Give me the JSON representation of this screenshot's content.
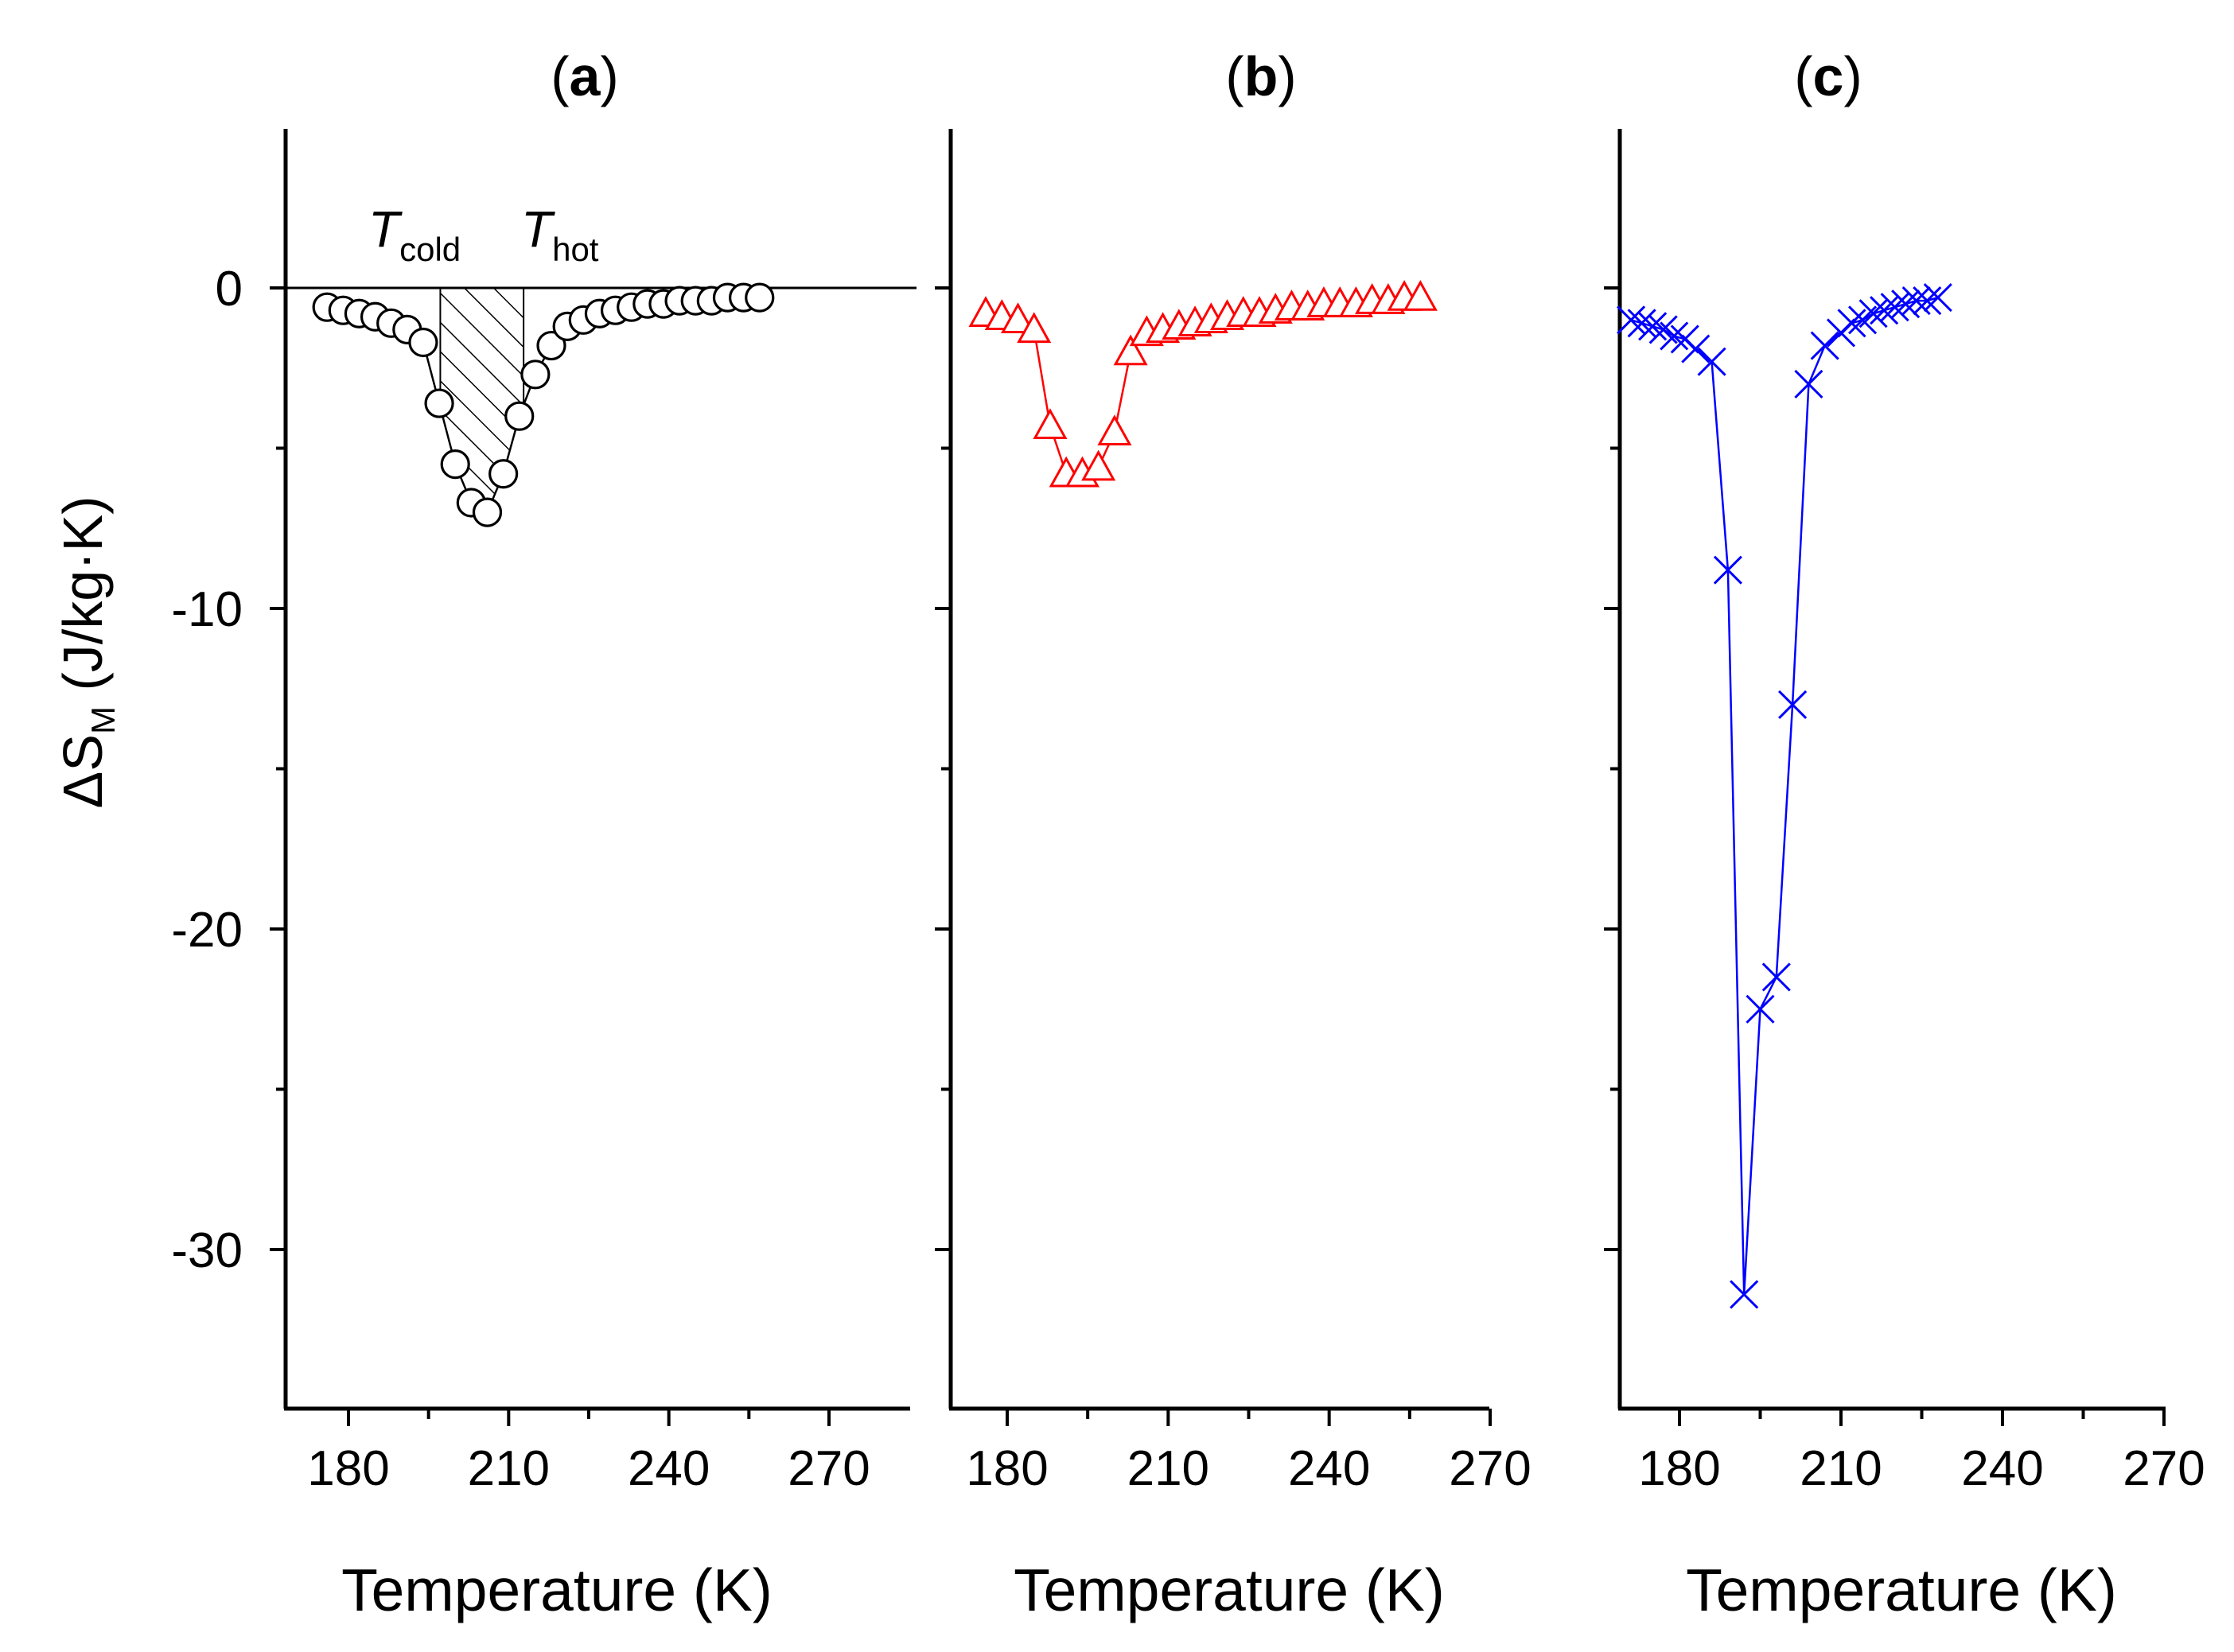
{
  "figure": {
    "ylabel": {
      "prefix": "ΔS",
      "sub": "M",
      "suffix": " (J/kg·K)"
    },
    "ylim": [
      -35,
      5
    ],
    "yticks": [
      0,
      -10,
      -20,
      -30
    ],
    "ytick_labels": [
      "0",
      "-10",
      "-20",
      "-30"
    ]
  },
  "chart_data": [
    {
      "type": "line",
      "title": {
        "open": "(",
        "letter": "a",
        "close": ")"
      },
      "xlabel": "Temperature (K)",
      "ylabel": "ΔSM (J/kg·K)",
      "xlim": [
        167.5,
        270
      ],
      "ylim": [
        -35,
        5
      ],
      "xticks": [
        180,
        210,
        240,
        270
      ],
      "xtick_labels": [
        "180",
        "210",
        "240",
        "270"
      ],
      "reference_line_y": 0,
      "annotations": [
        {
          "main": "T",
          "sub": "cold",
          "x": 197.2
        },
        {
          "main": "T",
          "sub": "hot",
          "x": 212.8
        }
      ],
      "shaded_region": {
        "x_from": 197.2,
        "x_to": 212.8,
        "pattern": "hatched"
      },
      "series": [
        {
          "marker": "circle-open",
          "color": "#000000",
          "x": [
            176,
            179,
            182,
            185,
            188,
            191,
            194,
            197,
            200,
            203,
            206,
            209,
            212,
            215,
            218,
            221,
            224,
            227,
            230,
            233,
            236,
            239,
            242,
            245,
            248,
            251,
            254,
            257
          ],
          "y": [
            -0.6,
            -0.7,
            -0.8,
            -0.9,
            -1.1,
            -1.3,
            -1.7,
            -3.6,
            -5.5,
            -6.7,
            -7.0,
            -5.8,
            -4.0,
            -2.7,
            -1.8,
            -1.2,
            -1.0,
            -0.8,
            -0.7,
            -0.6,
            -0.5,
            -0.5,
            -0.4,
            -0.4,
            -0.4,
            -0.3,
            -0.3,
            -0.3
          ]
        }
      ]
    },
    {
      "type": "line",
      "title": {
        "open": "(",
        "letter": "b",
        "close": ")"
      },
      "xlabel": "Temperature (K)",
      "xlim": [
        167.5,
        270
      ],
      "ylim": [
        -35,
        5
      ],
      "xticks": [
        180,
        210,
        240,
        270
      ],
      "xtick_labels": [
        "180",
        "210",
        "240",
        "270"
      ],
      "series": [
        {
          "marker": "triangle-open",
          "color": "#ff0000",
          "x": [
            176,
            179,
            182,
            185,
            188,
            191,
            194,
            197,
            200,
            203,
            206,
            209,
            212,
            215,
            218,
            221,
            224,
            227,
            230,
            233,
            236,
            239,
            242,
            245,
            248,
            251,
            254,
            257
          ],
          "y": [
            -0.8,
            -0.9,
            -1.0,
            -1.3,
            -4.3,
            -5.8,
            -5.8,
            -5.6,
            -4.5,
            -2.0,
            -1.4,
            -1.3,
            -1.2,
            -1.1,
            -1.0,
            -0.9,
            -0.8,
            -0.8,
            -0.7,
            -0.6,
            -0.6,
            -0.5,
            -0.5,
            -0.5,
            -0.4,
            -0.4,
            -0.3,
            -0.3
          ]
        }
      ]
    },
    {
      "type": "line",
      "title": {
        "open": "(",
        "letter": "c",
        "close": ")"
      },
      "xlabel": "Temperature (K)",
      "xlim": [
        167.5,
        270
      ],
      "ylim": [
        -35,
        5
      ],
      "xticks": [
        180,
        210,
        240,
        270
      ],
      "xtick_labels": [
        "180",
        "210",
        "240",
        "270"
      ],
      "series": [
        {
          "marker": "cross",
          "color": "#0000ff",
          "x": [
            171,
            173,
            175,
            177,
            179,
            181,
            183,
            186,
            189,
            192,
            195,
            198,
            201,
            204,
            207,
            210,
            212,
            214,
            216,
            218,
            220,
            222,
            224,
            226,
            228
          ],
          "y": [
            -1.0,
            -1.1,
            -1.2,
            -1.3,
            -1.5,
            -1.6,
            -1.9,
            -2.3,
            -8.8,
            -31.4,
            -22.5,
            -21.5,
            -13.0,
            -3.0,
            -1.8,
            -1.4,
            -1.1,
            -1.0,
            -0.8,
            -0.7,
            -0.6,
            -0.5,
            -0.4,
            -0.4,
            -0.3
          ]
        }
      ]
    }
  ]
}
